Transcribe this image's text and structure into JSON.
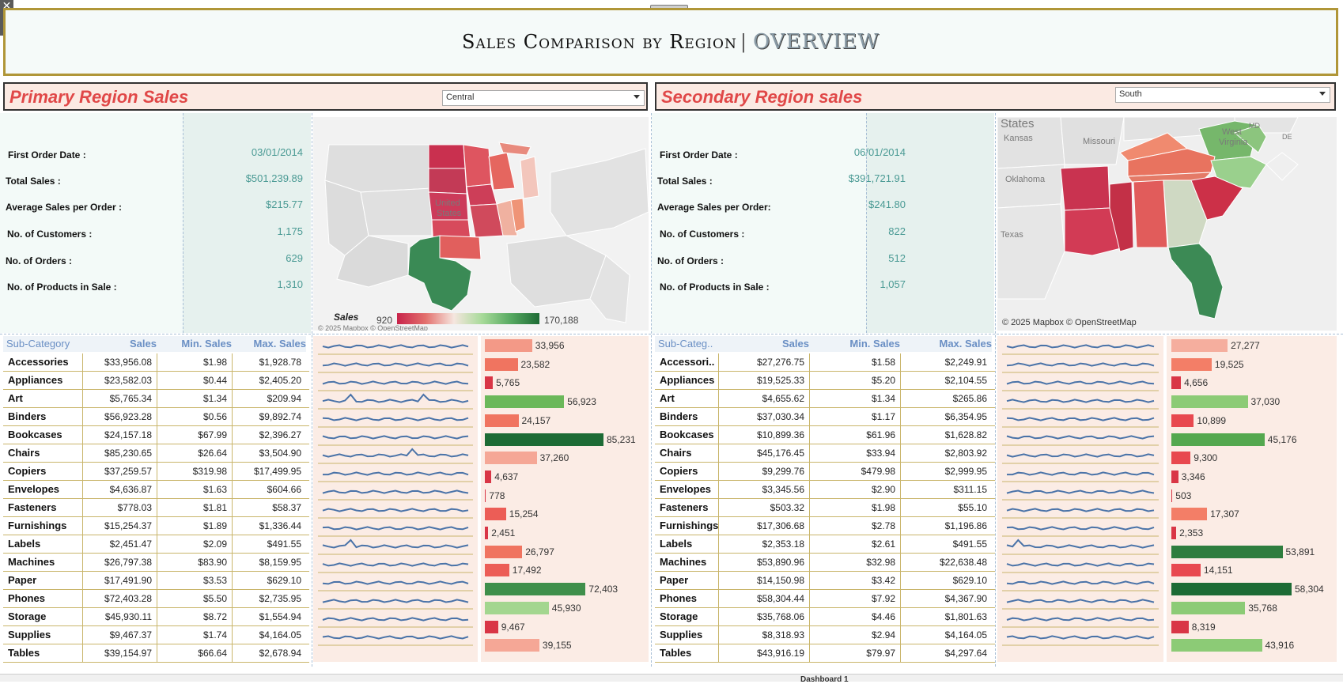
{
  "title": {
    "main": "Sales Comparison by Region",
    "separator": "|",
    "sub": "OVERVIEW"
  },
  "colors": {
    "accent_title": "#e04848",
    "kpi_value": "#4a9a94",
    "header_text": "#6a8fc4",
    "positive": "#2f8a4f",
    "negative": "#d7344a"
  },
  "primary": {
    "heading": "Primary Region Sales",
    "selected_region": "Central",
    "kpis": [
      {
        "label": "First Order Date :",
        "value": "03/01/2014"
      },
      {
        "label": "Total Sales :",
        "value": "$501,239.89"
      },
      {
        "label": "Average Sales per Order :",
        "value": "$215.77"
      },
      {
        "label": "No. of Customers :",
        "value": "1,175"
      },
      {
        "label": "No. of Orders :",
        "value": "629"
      },
      {
        "label": "No. of Products in Sale :",
        "value": "1,310"
      }
    ],
    "map": {
      "labels": {
        "united": "United",
        "states": "States"
      },
      "legend": {
        "title": "Sales",
        "min": "920",
        "max": "170,188"
      },
      "attribution": "© 2025 Mapbox © OpenStreetMap"
    },
    "table": {
      "headers": {
        "category": "Sub-Category",
        "sales": "Sales",
        "min": "Min. Sales",
        "max": "Max. Sales"
      },
      "rows": [
        {
          "category": "Accessories",
          "sales": "$33,956.08",
          "min": "$1.98",
          "max": "$1,928.78",
          "bar": 33956,
          "bar_label": "33,956"
        },
        {
          "category": "Appliances",
          "sales": "$23,582.03",
          "min": "$0.44",
          "max": "$2,405.20",
          "bar": 23582,
          "bar_label": "23,582"
        },
        {
          "category": "Art",
          "sales": "$5,765.34",
          "min": "$1.34",
          "max": "$209.94",
          "bar": 5765,
          "bar_label": "5,765"
        },
        {
          "category": "Binders",
          "sales": "$56,923.28",
          "min": "$0.56",
          "max": "$9,892.74",
          "bar": 56923,
          "bar_label": "56,923"
        },
        {
          "category": "Bookcases",
          "sales": "$24,157.18",
          "min": "$67.99",
          "max": "$2,396.27",
          "bar": 24157,
          "bar_label": "24,157"
        },
        {
          "category": "Chairs",
          "sales": "$85,230.65",
          "min": "$26.64",
          "max": "$3,504.90",
          "bar": 85231,
          "bar_label": "85,231"
        },
        {
          "category": "Copiers",
          "sales": "$37,259.57",
          "min": "$319.98",
          "max": "$17,499.95",
          "bar": 37260,
          "bar_label": "37,260"
        },
        {
          "category": "Envelopes",
          "sales": "$4,636.87",
          "min": "$1.63",
          "max": "$604.66",
          "bar": 4637,
          "bar_label": "4,637"
        },
        {
          "category": "Fasteners",
          "sales": "$778.03",
          "min": "$1.81",
          "max": "$58.37",
          "bar": 778,
          "bar_label": "778"
        },
        {
          "category": "Furnishings",
          "sales": "$15,254.37",
          "min": "$1.89",
          "max": "$1,336.44",
          "bar": 15254,
          "bar_label": "15,254"
        },
        {
          "category": "Labels",
          "sales": "$2,451.47",
          "min": "$2.09",
          "max": "$491.55",
          "bar": 2451,
          "bar_label": "2,451"
        },
        {
          "category": "Machines",
          "sales": "$26,797.38",
          "min": "$83.90",
          "max": "$8,159.95",
          "bar": 26797,
          "bar_label": "26,797"
        },
        {
          "category": "Paper",
          "sales": "$17,491.90",
          "min": "$3.53",
          "max": "$629.10",
          "bar": 17492,
          "bar_label": "17,492"
        },
        {
          "category": "Phones",
          "sales": "$72,403.28",
          "min": "$5.50",
          "max": "$2,735.95",
          "bar": 72403,
          "bar_label": "72,403"
        },
        {
          "category": "Storage",
          "sales": "$45,930.11",
          "min": "$8.72",
          "max": "$1,554.94",
          "bar": 45930,
          "bar_label": "45,930"
        },
        {
          "category": "Supplies",
          "sales": "$9,467.37",
          "min": "$1.74",
          "max": "$4,164.05",
          "bar": 9467,
          "bar_label": "9,467"
        },
        {
          "category": "Tables",
          "sales": "$39,154.97",
          "min": "$66.64",
          "max": "$2,678.94",
          "bar": 39155,
          "bar_label": "39,155"
        }
      ]
    }
  },
  "secondary": {
    "heading": "Secondary Region sales",
    "selected_region": "South",
    "kpis": [
      {
        "label": "First Order Date :",
        "value": "06/01/2014"
      },
      {
        "label": "Total Sales :",
        "value": "$391,721.91"
      },
      {
        "label": "Average Sales per Order:",
        "value": "$241.80"
      },
      {
        "label": "No. of Customers :",
        "value": "822"
      },
      {
        "label": "No. of Orders :",
        "value": "512"
      },
      {
        "label": "No. of Products in Sale :",
        "value": "1,057"
      }
    ],
    "map": {
      "labels": {
        "states": "States",
        "kansas": "Kansas",
        "missouri": "Missouri",
        "west": "West",
        "virginia": "Virginia",
        "md": "MD",
        "de": "DE",
        "oklahoma": "Oklahoma",
        "texas": "Texas"
      },
      "attribution": "© 2025 Mapbox © OpenStreetMap"
    },
    "table": {
      "headers": {
        "category": "Sub-Categ..",
        "sales": "Sales",
        "min": "Min. Sales",
        "max": "Max. Sales"
      },
      "rows": [
        {
          "category": "Accessori..",
          "sales": "$27,276.75",
          "min": "$1.58",
          "max": "$2,249.91",
          "bar": 27277,
          "bar_label": "27,277"
        },
        {
          "category": "Appliances",
          "sales": "$19,525.33",
          "min": "$5.20",
          "max": "$2,104.55",
          "bar": 19525,
          "bar_label": "19,525"
        },
        {
          "category": "Art",
          "sales": "$4,655.62",
          "min": "$1.34",
          "max": "$265.86",
          "bar": 4656,
          "bar_label": "4,656"
        },
        {
          "category": "Binders",
          "sales": "$37,030.34",
          "min": "$1.17",
          "max": "$6,354.95",
          "bar": 37030,
          "bar_label": "37,030"
        },
        {
          "category": "Bookcases",
          "sales": "$10,899.36",
          "min": "$61.96",
          "max": "$1,628.82",
          "bar": 10899,
          "bar_label": "10,899"
        },
        {
          "category": "Chairs",
          "sales": "$45,176.45",
          "min": "$33.94",
          "max": "$2,803.92",
          "bar": 45176,
          "bar_label": "45,176"
        },
        {
          "category": "Copiers",
          "sales": "$9,299.76",
          "min": "$479.98",
          "max": "$2,999.95",
          "bar": 9300,
          "bar_label": "9,300"
        },
        {
          "category": "Envelopes",
          "sales": "$3,345.56",
          "min": "$2.90",
          "max": "$311.15",
          "bar": 3346,
          "bar_label": "3,346"
        },
        {
          "category": "Fasteners",
          "sales": "$503.32",
          "min": "$1.98",
          "max": "$55.10",
          "bar": 503,
          "bar_label": "503"
        },
        {
          "category": "Furnishings",
          "sales": "$17,306.68",
          "min": "$2.78",
          "max": "$1,196.86",
          "bar": 17307,
          "bar_label": "17,307"
        },
        {
          "category": "Labels",
          "sales": "$2,353.18",
          "min": "$2.61",
          "max": "$491.55",
          "bar": 2353,
          "bar_label": "2,353"
        },
        {
          "category": "Machines",
          "sales": "$53,890.96",
          "min": "$32.98",
          "max": "$22,638.48",
          "bar": 53891,
          "bar_label": "53,891"
        },
        {
          "category": "Paper",
          "sales": "$14,150.98",
          "min": "$3.42",
          "max": "$629.10",
          "bar": 14151,
          "bar_label": "14,151"
        },
        {
          "category": "Phones",
          "sales": "$58,304.44",
          "min": "$7.92",
          "max": "$4,367.90",
          "bar": 58304,
          "bar_label": "58,304"
        },
        {
          "category": "Storage",
          "sales": "$35,768.06",
          "min": "$4.46",
          "max": "$1,801.63",
          "bar": 35768,
          "bar_label": "35,768"
        },
        {
          "category": "Supplies",
          "sales": "$8,318.93",
          "min": "$2.94",
          "max": "$4,164.05",
          "bar": 8319,
          "bar_label": "8,319"
        },
        {
          "category": "Tables",
          "sales": "$43,916.19",
          "min": "$79.97",
          "max": "$4,297.64",
          "bar": 43916,
          "bar_label": "43,916"
        }
      ]
    }
  },
  "tabs": [
    "Dashboard 1"
  ]
}
